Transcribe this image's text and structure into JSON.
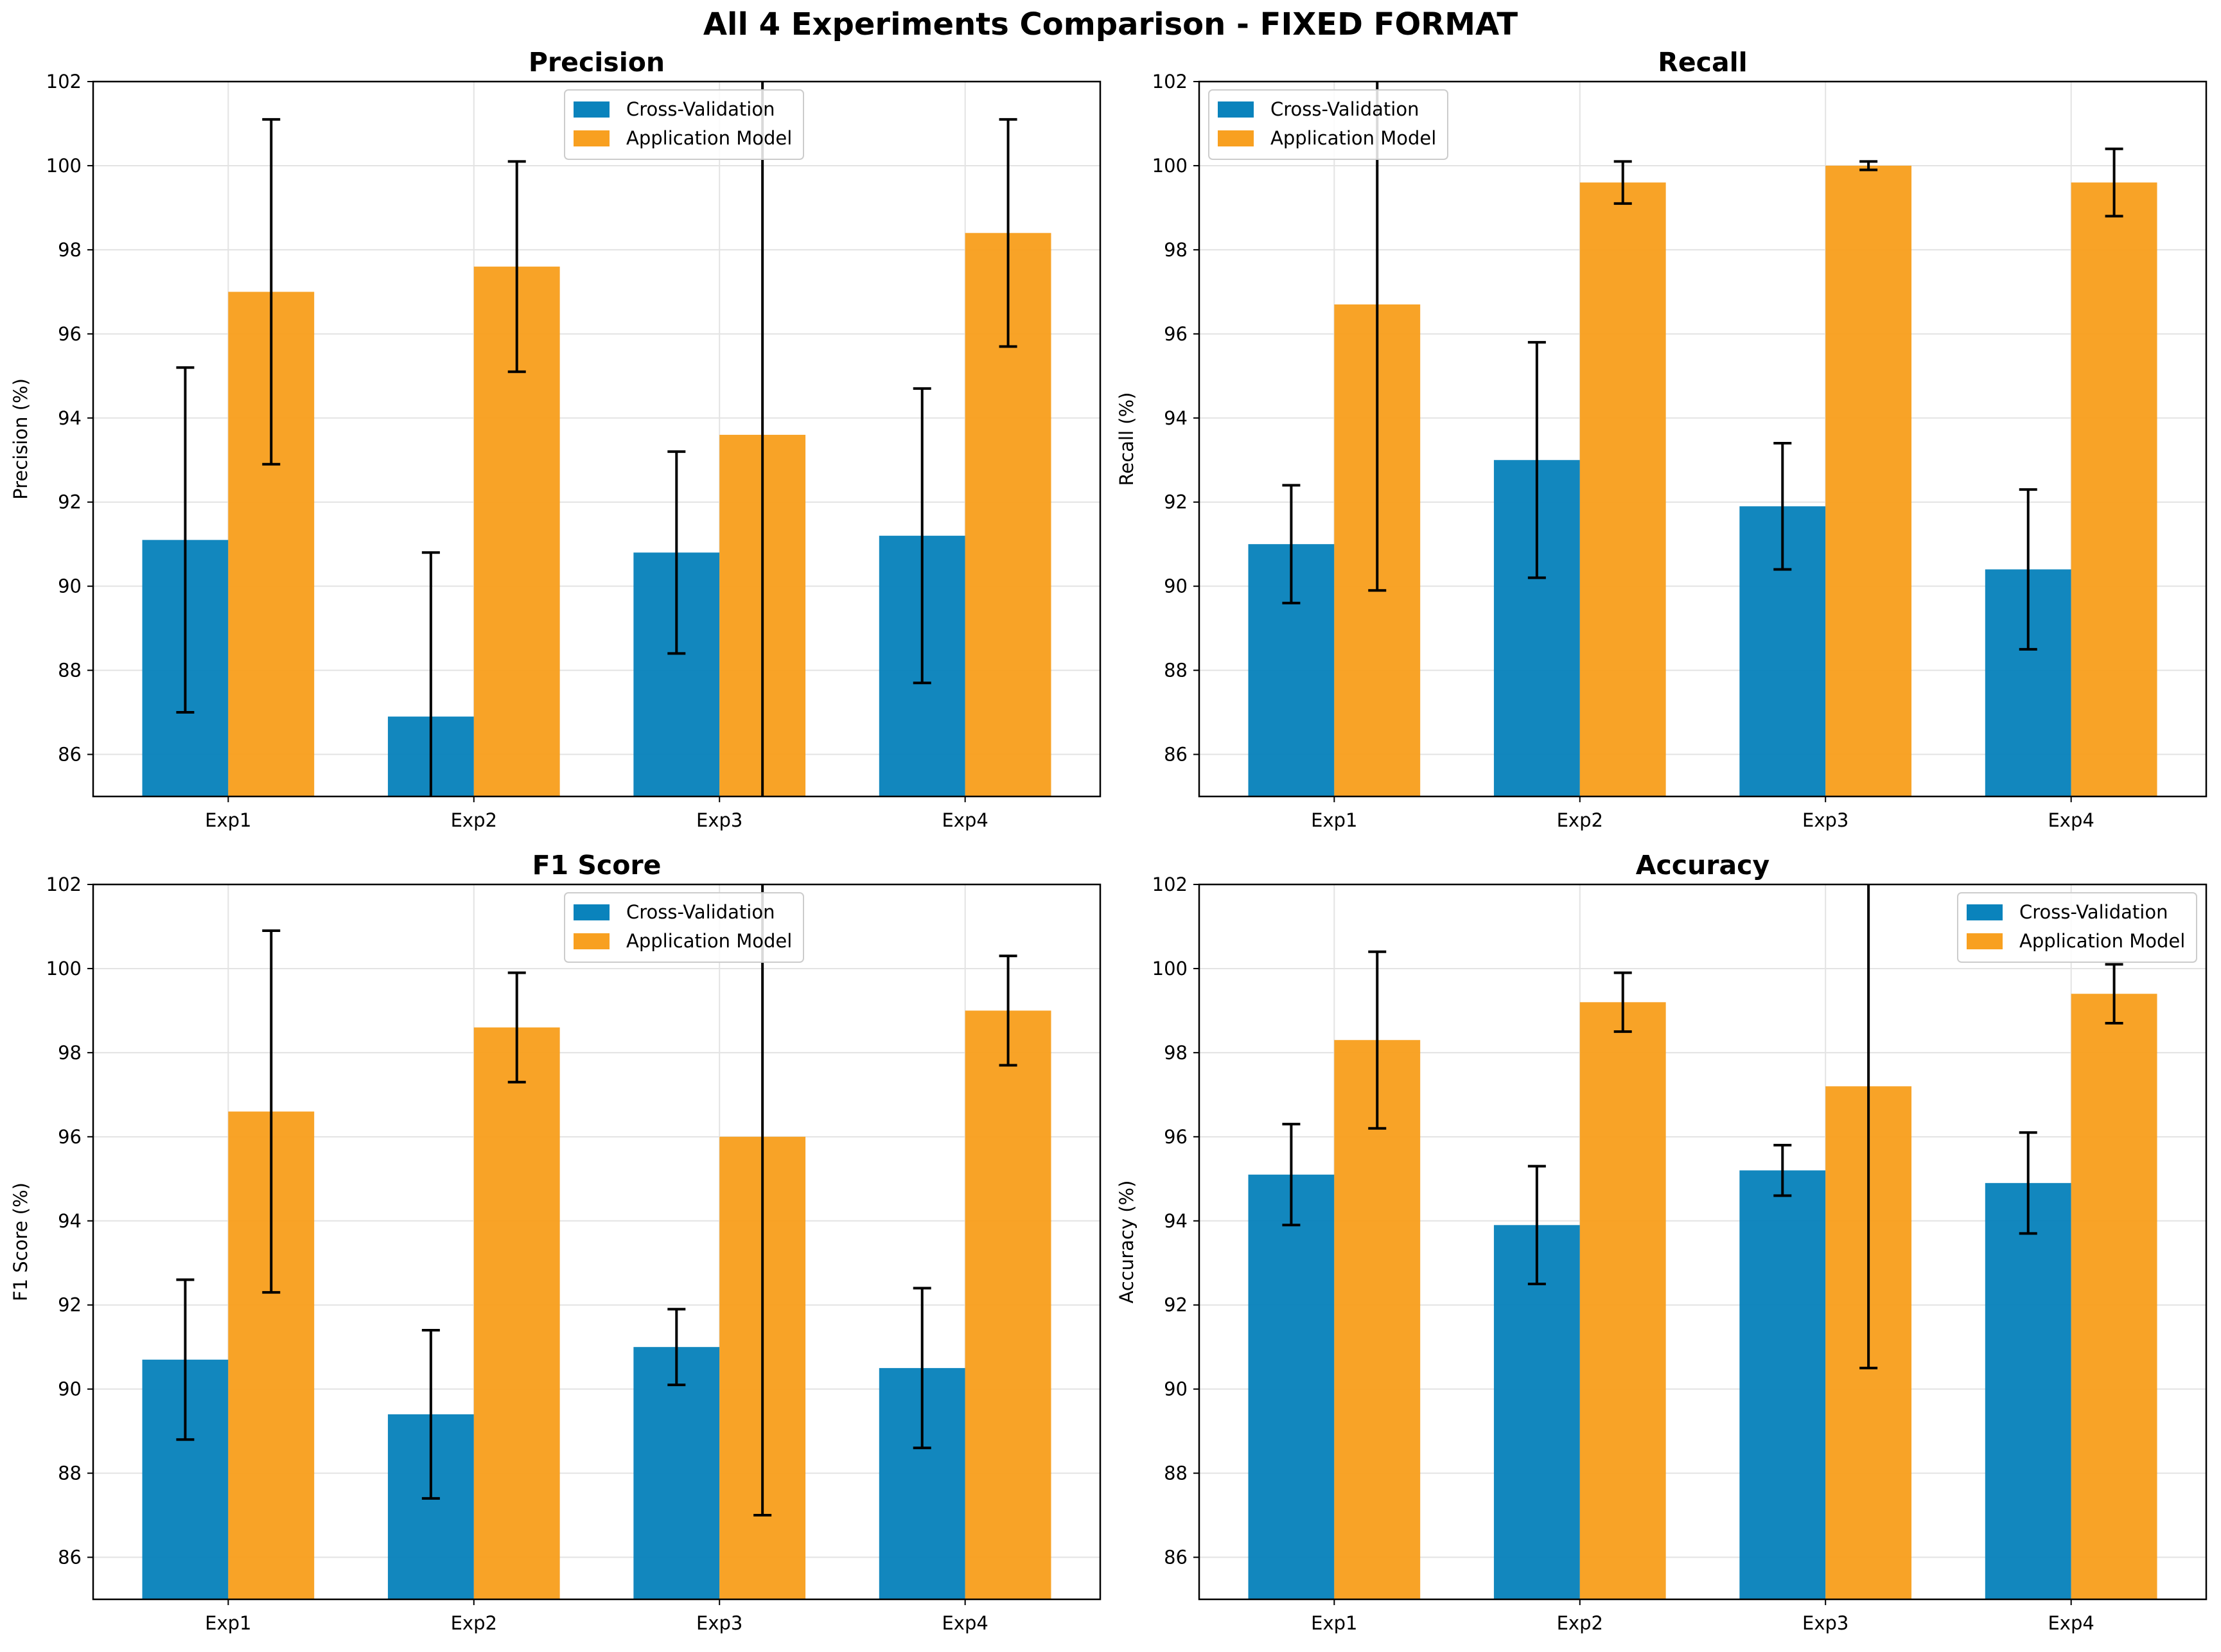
{
  "figure": {
    "title": "All 4 Experiments Comparison - FIXED FORMAT"
  },
  "colors": {
    "cross_validation": "#0a83bc",
    "application_model": "#f8a020",
    "error_bar": "#000000"
  },
  "legend_labels": [
    "Cross-Validation",
    "Application Model"
  ],
  "chart_data": [
    {
      "type": "bar",
      "title": "Precision",
      "xlabel": "",
      "ylabel": "Precision (%)",
      "categories": [
        "Exp1",
        "Exp2",
        "Exp3",
        "Exp4"
      ],
      "ylim": [
        85,
        102
      ],
      "yticks": [
        86,
        88,
        90,
        92,
        94,
        96,
        98,
        100,
        102
      ],
      "grid": true,
      "legend_position": "top-center",
      "series": [
        {
          "name": "Cross-Validation",
          "values": [
            91.1,
            86.9,
            90.8,
            91.2
          ],
          "errors": [
            4.1,
            3.9,
            2.4,
            3.5
          ]
        },
        {
          "name": "Application Model",
          "values": [
            97.0,
            97.6,
            93.6,
            98.4
          ],
          "errors": [
            4.1,
            2.5,
            12.5,
            2.7
          ]
        }
      ]
    },
    {
      "type": "bar",
      "title": "Recall",
      "xlabel": "",
      "ylabel": "Recall (%)",
      "categories": [
        "Exp1",
        "Exp2",
        "Exp3",
        "Exp4"
      ],
      "ylim": [
        85,
        102
      ],
      "yticks": [
        86,
        88,
        90,
        92,
        94,
        96,
        98,
        100,
        102
      ],
      "grid": true,
      "legend_position": "top-left",
      "series": [
        {
          "name": "Cross-Validation",
          "values": [
            91.0,
            93.0,
            91.9,
            90.4
          ],
          "errors": [
            1.4,
            2.8,
            1.5,
            1.9
          ]
        },
        {
          "name": "Application Model",
          "values": [
            96.7,
            99.6,
            100.0,
            99.6
          ],
          "errors": [
            6.8,
            0.5,
            0.1,
            0.8
          ]
        }
      ]
    },
    {
      "type": "bar",
      "title": "F1 Score",
      "xlabel": "",
      "ylabel": "F1 Score (%)",
      "categories": [
        "Exp1",
        "Exp2",
        "Exp3",
        "Exp4"
      ],
      "ylim": [
        85,
        102
      ],
      "yticks": [
        86,
        88,
        90,
        92,
        94,
        96,
        98,
        100,
        102
      ],
      "grid": true,
      "legend_position": "top-center",
      "series": [
        {
          "name": "Cross-Validation",
          "values": [
            90.7,
            89.4,
            91.0,
            90.5
          ],
          "errors": [
            1.9,
            2.0,
            0.9,
            1.9
          ]
        },
        {
          "name": "Application Model",
          "values": [
            96.6,
            98.6,
            96.0,
            99.0
          ],
          "errors": [
            4.3,
            1.3,
            9.0,
            1.3
          ]
        }
      ]
    },
    {
      "type": "bar",
      "title": "Accuracy",
      "xlabel": "",
      "ylabel": "Accuracy (%)",
      "categories": [
        "Exp1",
        "Exp2",
        "Exp3",
        "Exp4"
      ],
      "ylim": [
        85,
        102
      ],
      "yticks": [
        86,
        88,
        90,
        92,
        94,
        96,
        98,
        100,
        102
      ],
      "grid": true,
      "legend_position": "top-right",
      "series": [
        {
          "name": "Cross-Validation",
          "values": [
            95.1,
            93.9,
            95.2,
            94.9
          ],
          "errors": [
            1.2,
            1.4,
            0.6,
            1.2
          ]
        },
        {
          "name": "Application Model",
          "values": [
            98.3,
            99.2,
            97.2,
            99.4
          ],
          "errors": [
            2.1,
            0.7,
            6.7,
            0.7
          ]
        }
      ]
    }
  ]
}
